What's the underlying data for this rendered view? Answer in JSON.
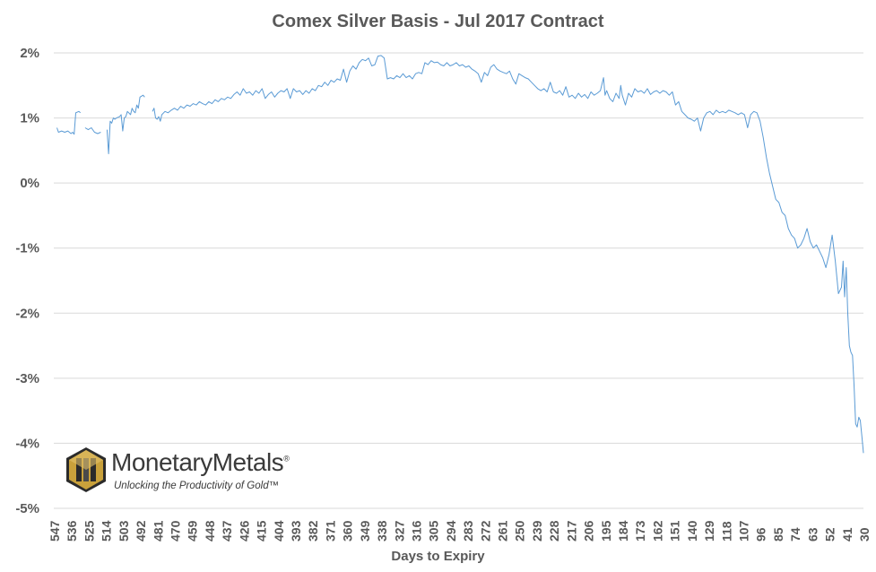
{
  "chart_data": {
    "type": "line",
    "title": "Comex Silver Basis - Jul 2017 Contract",
    "xlabel": "Days to Expiry",
    "ylabel": "",
    "x_tick_labels": [
      "547",
      "536",
      "525",
      "514",
      "503",
      "492",
      "481",
      "470",
      "459",
      "448",
      "437",
      "426",
      "415",
      "404",
      "393",
      "382",
      "371",
      "360",
      "349",
      "338",
      "327",
      "316",
      "305",
      "294",
      "283",
      "272",
      "261",
      "250",
      "239",
      "228",
      "217",
      "206",
      "195",
      "184",
      "173",
      "162",
      "151",
      "140",
      "129",
      "118",
      "107",
      "96",
      "85",
      "74",
      "63",
      "52",
      "41",
      "30"
    ],
    "y_tick_labels": [
      "2%",
      "1%",
      "0%",
      "-1%",
      "-2%",
      "-3%",
      "-4%",
      "-5%"
    ],
    "ylim": [
      -5,
      2
    ],
    "xlim": [
      547,
      30
    ],
    "x_reversed": true,
    "grid": "horizontal",
    "legend": "none",
    "line_color": "#5b9bd5",
    "series": [
      {
        "points": [
          [
            545,
            0.85
          ],
          [
            544,
            0.78
          ],
          [
            542,
            0.8
          ],
          [
            540,
            0.78
          ],
          [
            538,
            0.8
          ],
          [
            536,
            0.76
          ],
          [
            535,
            0.78
          ],
          [
            534,
            0.75
          ],
          [
            533,
            1.08
          ],
          [
            531,
            1.1
          ],
          [
            530,
            1.08
          ],
          [
            527,
            0.85
          ],
          [
            525,
            0.82
          ],
          [
            523,
            0.85
          ],
          [
            521,
            0.78
          ],
          [
            519,
            0.76
          ],
          [
            517,
            0.78
          ],
          [
            513,
            0.82
          ],
          [
            512,
            0.45
          ],
          [
            511,
            0.95
          ],
          [
            510,
            0.92
          ],
          [
            509,
            1.0
          ],
          [
            508,
            0.98
          ],
          [
            507,
            1.0
          ],
          [
            505,
            1.02
          ],
          [
            504,
            1.05
          ],
          [
            503,
            0.8
          ],
          [
            502,
            1.0
          ],
          [
            501,
            1.02
          ],
          [
            500,
            1.1
          ],
          [
            498,
            1.05
          ],
          [
            497,
            1.15
          ],
          [
            496,
            1.1
          ],
          [
            495,
            1.08
          ],
          [
            494,
            1.2
          ],
          [
            493,
            1.15
          ],
          [
            492,
            1.32
          ],
          [
            490,
            1.35
          ],
          [
            489,
            1.32
          ],
          [
            484,
            1.1
          ],
          [
            483,
            1.15
          ],
          [
            482,
            1.0
          ],
          [
            481,
            0.98
          ],
          [
            480,
            1.02
          ],
          [
            479,
            0.95
          ],
          [
            478,
            1.05
          ],
          [
            476,
            1.1
          ],
          [
            474,
            1.08
          ],
          [
            472,
            1.12
          ],
          [
            470,
            1.15
          ],
          [
            468,
            1.12
          ],
          [
            466,
            1.18
          ],
          [
            464,
            1.15
          ],
          [
            462,
            1.2
          ],
          [
            460,
            1.18
          ],
          [
            458,
            1.22
          ],
          [
            456,
            1.2
          ],
          [
            454,
            1.25
          ],
          [
            452,
            1.22
          ],
          [
            450,
            1.2
          ],
          [
            448,
            1.25
          ],
          [
            446,
            1.22
          ],
          [
            444,
            1.28
          ],
          [
            442,
            1.25
          ],
          [
            440,
            1.3
          ],
          [
            438,
            1.28
          ],
          [
            436,
            1.32
          ],
          [
            434,
            1.3
          ],
          [
            432,
            1.36
          ],
          [
            430,
            1.4
          ],
          [
            428,
            1.35
          ],
          [
            426,
            1.45
          ],
          [
            424,
            1.38
          ],
          [
            422,
            1.4
          ],
          [
            420,
            1.35
          ],
          [
            418,
            1.42
          ],
          [
            416,
            1.38
          ],
          [
            414,
            1.45
          ],
          [
            412,
            1.3
          ],
          [
            410,
            1.36
          ],
          [
            408,
            1.4
          ],
          [
            406,
            1.32
          ],
          [
            404,
            1.38
          ],
          [
            402,
            1.42
          ],
          [
            400,
            1.4
          ],
          [
            398,
            1.45
          ],
          [
            396,
            1.3
          ],
          [
            394,
            1.45
          ],
          [
            392,
            1.4
          ],
          [
            390,
            1.42
          ],
          [
            388,
            1.36
          ],
          [
            386,
            1.42
          ],
          [
            384,
            1.38
          ],
          [
            382,
            1.45
          ],
          [
            380,
            1.42
          ],
          [
            378,
            1.5
          ],
          [
            376,
            1.48
          ],
          [
            374,
            1.55
          ],
          [
            372,
            1.5
          ],
          [
            370,
            1.58
          ],
          [
            368,
            1.55
          ],
          [
            366,
            1.6
          ],
          [
            364,
            1.58
          ],
          [
            362,
            1.75
          ],
          [
            360,
            1.55
          ],
          [
            358,
            1.72
          ],
          [
            356,
            1.8
          ],
          [
            354,
            1.75
          ],
          [
            352,
            1.85
          ],
          [
            350,
            1.9
          ],
          [
            348,
            1.88
          ],
          [
            346,
            1.92
          ],
          [
            344,
            1.8
          ],
          [
            342,
            1.82
          ],
          [
            340,
            1.95
          ],
          [
            338,
            1.96
          ],
          [
            336,
            1.92
          ],
          [
            334,
            1.6
          ],
          [
            332,
            1.62
          ],
          [
            330,
            1.6
          ],
          [
            328,
            1.65
          ],
          [
            326,
            1.62
          ],
          [
            324,
            1.68
          ],
          [
            322,
            1.62
          ],
          [
            320,
            1.65
          ],
          [
            318,
            1.6
          ],
          [
            316,
            1.68
          ],
          [
            314,
            1.7
          ],
          [
            312,
            1.68
          ],
          [
            310,
            1.85
          ],
          [
            308,
            1.82
          ],
          [
            306,
            1.88
          ],
          [
            304,
            1.85
          ],
          [
            302,
            1.86
          ],
          [
            300,
            1.82
          ],
          [
            298,
            1.8
          ],
          [
            296,
            1.85
          ],
          [
            294,
            1.8
          ],
          [
            292,
            1.82
          ],
          [
            290,
            1.85
          ],
          [
            288,
            1.8
          ],
          [
            286,
            1.82
          ],
          [
            284,
            1.78
          ],
          [
            282,
            1.8
          ],
          [
            280,
            1.75
          ],
          [
            278,
            1.72
          ],
          [
            276,
            1.68
          ],
          [
            274,
            1.55
          ],
          [
            272,
            1.7
          ],
          [
            270,
            1.65
          ],
          [
            268,
            1.78
          ],
          [
            266,
            1.82
          ],
          [
            264,
            1.75
          ],
          [
            262,
            1.72
          ],
          [
            260,
            1.7
          ],
          [
            258,
            1.68
          ],
          [
            256,
            1.72
          ],
          [
            254,
            1.6
          ],
          [
            252,
            1.52
          ],
          [
            250,
            1.68
          ],
          [
            248,
            1.65
          ],
          [
            246,
            1.62
          ],
          [
            244,
            1.6
          ],
          [
            242,
            1.55
          ],
          [
            240,
            1.5
          ],
          [
            238,
            1.45
          ],
          [
            236,
            1.42
          ],
          [
            234,
            1.45
          ],
          [
            232,
            1.4
          ],
          [
            230,
            1.55
          ],
          [
            228,
            1.4
          ],
          [
            226,
            1.38
          ],
          [
            224,
            1.42
          ],
          [
            222,
            1.35
          ],
          [
            220,
            1.48
          ],
          [
            218,
            1.32
          ],
          [
            216,
            1.35
          ],
          [
            214,
            1.3
          ],
          [
            212,
            1.38
          ],
          [
            210,
            1.32
          ],
          [
            208,
            1.36
          ],
          [
            206,
            1.3
          ],
          [
            204,
            1.4
          ],
          [
            202,
            1.35
          ],
          [
            200,
            1.38
          ],
          [
            198,
            1.42
          ],
          [
            196,
            1.62
          ],
          [
            195,
            1.35
          ],
          [
            194,
            1.42
          ],
          [
            192,
            1.3
          ],
          [
            190,
            1.25
          ],
          [
            188,
            1.38
          ],
          [
            186,
            1.3
          ],
          [
            185,
            1.5
          ],
          [
            184,
            1.35
          ],
          [
            182,
            1.2
          ],
          [
            180,
            1.38
          ],
          [
            178,
            1.32
          ],
          [
            176,
            1.45
          ],
          [
            174,
            1.4
          ],
          [
            172,
            1.42
          ],
          [
            170,
            1.38
          ],
          [
            168,
            1.45
          ],
          [
            166,
            1.36
          ],
          [
            164,
            1.4
          ],
          [
            162,
            1.42
          ],
          [
            160,
            1.38
          ],
          [
            158,
            1.42
          ],
          [
            156,
            1.4
          ],
          [
            154,
            1.35
          ],
          [
            152,
            1.4
          ],
          [
            150,
            1.2
          ],
          [
            148,
            1.25
          ],
          [
            146,
            1.1
          ],
          [
            144,
            1.05
          ],
          [
            142,
            1.0
          ],
          [
            140,
            0.98
          ],
          [
            138,
            0.95
          ],
          [
            136,
            1.0
          ],
          [
            134,
            0.8
          ],
          [
            132,
            1.0
          ],
          [
            130,
            1.08
          ],
          [
            128,
            1.1
          ],
          [
            126,
            1.05
          ],
          [
            124,
            1.12
          ],
          [
            122,
            1.08
          ],
          [
            120,
            1.1
          ],
          [
            118,
            1.08
          ],
          [
            116,
            1.12
          ],
          [
            114,
            1.1
          ],
          [
            112,
            1.08
          ],
          [
            110,
            1.05
          ],
          [
            108,
            1.08
          ],
          [
            106,
            1.05
          ],
          [
            104,
            0.85
          ],
          [
            102,
            1.05
          ],
          [
            100,
            1.1
          ],
          [
            98,
            1.08
          ],
          [
            96,
            0.95
          ],
          [
            94,
            0.7
          ],
          [
            92,
            0.4
          ],
          [
            90,
            0.15
          ],
          [
            88,
            -0.05
          ],
          [
            86,
            -0.25
          ],
          [
            84,
            -0.3
          ],
          [
            82,
            -0.45
          ],
          [
            80,
            -0.5
          ],
          [
            78,
            -0.7
          ],
          [
            76,
            -0.8
          ],
          [
            74,
            -0.85
          ],
          [
            72,
            -1.0
          ],
          [
            70,
            -0.95
          ],
          [
            68,
            -0.85
          ],
          [
            66,
            -0.7
          ],
          [
            64,
            -0.9
          ],
          [
            62,
            -1.0
          ],
          [
            60,
            -0.95
          ],
          [
            58,
            -1.05
          ],
          [
            56,
            -1.15
          ],
          [
            54,
            -1.3
          ],
          [
            52,
            -1.1
          ],
          [
            50,
            -0.8
          ],
          [
            48,
            -1.2
          ],
          [
            46,
            -1.7
          ],
          [
            44,
            -1.6
          ],
          [
            43,
            -1.2
          ],
          [
            42,
            -1.75
          ],
          [
            41,
            -1.3
          ],
          [
            40,
            -2.0
          ],
          [
            39,
            -2.5
          ],
          [
            38,
            -2.6
          ],
          [
            37,
            -2.65
          ],
          [
            36,
            -3.1
          ],
          [
            35,
            -3.7
          ],
          [
            34,
            -3.75
          ],
          [
            33,
            -3.6
          ],
          [
            32,
            -3.65
          ],
          [
            31,
            -3.9
          ],
          [
            30,
            -4.15
          ]
        ]
      }
    ]
  },
  "logo": {
    "brand": "MonetaryMetals",
    "registered_mark": "®",
    "tagline": "Unlocking the Productivity of Gold™"
  }
}
